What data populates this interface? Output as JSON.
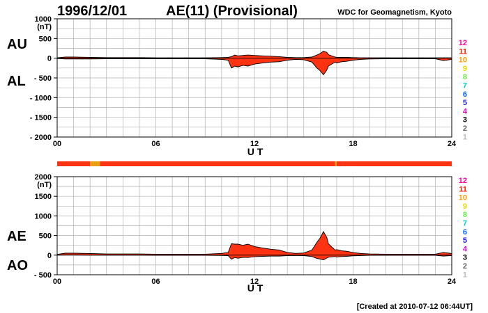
{
  "header": {
    "date": "1996/12/01",
    "title": "AE(11) (Provisional)",
    "source": "WDC for Geomagnetism, Kyoto"
  },
  "footer": {
    "created": "[Created at 2010-07-12 06:44UT]"
  },
  "station_legend": [
    "12",
    "11",
    "10",
    "9",
    "8",
    "7",
    "6",
    "5",
    "4",
    "3",
    "2",
    "1"
  ],
  "station_colors": [
    "#ff0099",
    "#ff2000",
    "#ff9900",
    "#e8d800",
    "#66ee44",
    "#00c8c8",
    "#0066ff",
    "#2222dd",
    "#dd00dd",
    "#000000",
    "#666666",
    "#bbbbbb"
  ],
  "fill_color": "#ff3311",
  "chart_data": [
    {
      "type": "area",
      "panel": "AU/AL",
      "series_labels": [
        "AU",
        "AL"
      ],
      "xlabel": "U T",
      "xticks": [
        "00",
        "06",
        "12",
        "18",
        "24"
      ],
      "xlim": [
        0,
        24
      ],
      "ylim": [
        -2000,
        1000
      ],
      "yticks": [
        "1000",
        "500",
        "0",
        "- 500",
        "- 1000",
        "- 1500",
        "- 2000"
      ],
      "yunit": "(nT)",
      "grid": true,
      "x": [
        0,
        0.5,
        1,
        2,
        3,
        4,
        5,
        6,
        7,
        8,
        9,
        10,
        10.4,
        10.6,
        10.8,
        11,
        11.3,
        11.6,
        12,
        12.5,
        13,
        13.5,
        14,
        14.5,
        15,
        15.5,
        15.8,
        16,
        16.2,
        16.4,
        16.5,
        16.7,
        16.9,
        17,
        17.3,
        17.6,
        18,
        18.5,
        19,
        20,
        21,
        22,
        23,
        23.5,
        24
      ],
      "upper": [
        10,
        30,
        30,
        20,
        15,
        15,
        15,
        10,
        10,
        10,
        10,
        15,
        20,
        40,
        80,
        60,
        70,
        80,
        70,
        60,
        50,
        40,
        20,
        15,
        15,
        30,
        80,
        120,
        180,
        150,
        90,
        60,
        30,
        20,
        20,
        20,
        15,
        10,
        10,
        10,
        10,
        10,
        10,
        10,
        10
      ],
      "lower": [
        -10,
        -20,
        -20,
        -20,
        -15,
        -15,
        -15,
        -15,
        -15,
        -15,
        -15,
        -30,
        -50,
        -250,
        -200,
        -220,
        -180,
        -200,
        -150,
        -120,
        -100,
        -90,
        -50,
        -30,
        -40,
        -100,
        -250,
        -320,
        -420,
        -300,
        -200,
        -150,
        -100,
        -120,
        -90,
        -80,
        -50,
        -30,
        -20,
        -15,
        -15,
        -15,
        -15,
        -60,
        -30
      ]
    },
    {
      "type": "area",
      "panel": "AE/AO",
      "series_labels": [
        "AE",
        "AO"
      ],
      "xlabel": "U T",
      "xticks": [
        "00",
        "06",
        "12",
        "18",
        "24"
      ],
      "xlim": [
        0,
        24
      ],
      "ylim": [
        -500,
        2000
      ],
      "yticks": [
        "2000",
        "1500",
        "1000",
        "500",
        "0",
        "- 500"
      ],
      "yunit": "(nT)",
      "grid": true,
      "x": [
        0,
        0.5,
        1,
        2,
        3,
        4,
        5,
        6,
        7,
        8,
        9,
        10,
        10.4,
        10.6,
        10.8,
        11,
        11.3,
        11.6,
        12,
        12.5,
        13,
        13.5,
        14,
        14.5,
        15,
        15.5,
        15.8,
        16,
        16.2,
        16.4,
        16.5,
        16.7,
        16.9,
        17,
        17.3,
        17.6,
        18,
        18.5,
        19,
        20,
        21,
        22,
        23,
        23.5,
        24
      ],
      "upper": [
        20,
        50,
        50,
        40,
        30,
        30,
        30,
        25,
        25,
        25,
        25,
        45,
        70,
        290,
        280,
        280,
        250,
        280,
        220,
        180,
        150,
        130,
        70,
        45,
        55,
        130,
        330,
        440,
        600,
        450,
        290,
        210,
        130,
        140,
        110,
        100,
        65,
        40,
        30,
        25,
        25,
        25,
        25,
        70,
        40
      ],
      "lower": [
        0,
        5,
        5,
        0,
        0,
        0,
        0,
        -3,
        -3,
        -3,
        -3,
        -8,
        -15,
        -105,
        -60,
        -80,
        -55,
        -60,
        -40,
        -30,
        -25,
        -25,
        -15,
        -8,
        -12,
        -35,
        -85,
        -100,
        -120,
        -75,
        -55,
        -45,
        -35,
        -50,
        -35,
        -30,
        -18,
        -10,
        -5,
        -3,
        -3,
        -3,
        -3,
        -25,
        -10
      ]
    }
  ],
  "coverage_bar": {
    "segments": [
      {
        "from": 0,
        "to": 2.0,
        "color": "#ff3311"
      },
      {
        "from": 2.0,
        "to": 2.6,
        "color": "#e8a010"
      },
      {
        "from": 2.6,
        "to": 16.9,
        "color": "#ff3311"
      },
      {
        "from": 16.9,
        "to": 17.0,
        "color": "#e8a010"
      },
      {
        "from": 17.0,
        "to": 24,
        "color": "#ff3311"
      }
    ]
  }
}
